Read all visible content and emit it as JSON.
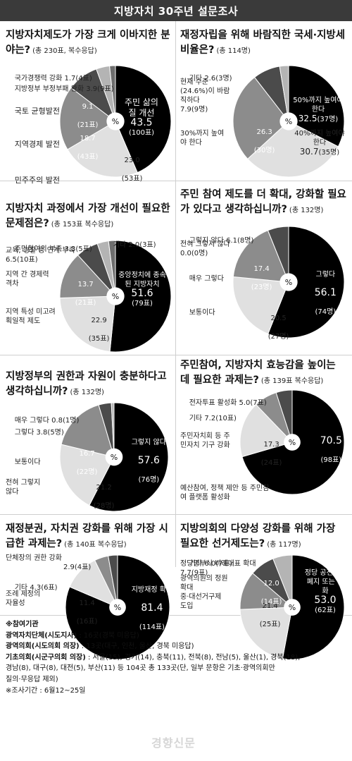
{
  "banner": {
    "title": "지방자치 30주년 설문조사"
  },
  "chart_data": [
    {
      "type": "pie",
      "question": "지방자치제도가 가장 크게 이바지한 분야는?",
      "note": "(총 230표, 복수응답)",
      "center": "%",
      "slices": [
        {
          "label": "주민 삶의 질 개선",
          "value": 43.5,
          "count": "(100표)",
          "color": "#000000"
        },
        {
          "label": "민주주의 발전",
          "value": 23.0,
          "count": "(53표)",
          "color": "#e0e0e0"
        },
        {
          "label": "지역경제 발전",
          "value": 18.7,
          "count": "(43표)",
          "color": "#8c8c8c"
        },
        {
          "label": "국토 균형발전",
          "value": 9.1,
          "count": "(21표)",
          "color": "#4b4b4b"
        },
        {
          "label": "지방정부 부정부패 완화",
          "value": 3.9,
          "count": "(9표)",
          "color": "#b4b4b4"
        },
        {
          "label": "국가경쟁력 강화",
          "value": 1.7,
          "count": "(4표)",
          "color": "#6e6e6e"
        }
      ]
    },
    {
      "type": "pie",
      "question": "재정자립을 위해 바람직한 국세·지방세 비율은?",
      "note": "(총 114명)",
      "center": "%",
      "slices": [
        {
          "label": "50%까지 높여야 한다",
          "value": 32.5,
          "count": "(37명)",
          "color": "#000000"
        },
        {
          "label": "40%까지 높여야 한다",
          "value": 30.7,
          "count": "(35명)",
          "color": "#e0e0e0"
        },
        {
          "label": "30%까지 높여야 한다",
          "value": 26.3,
          "count": "(30명)",
          "color": "#8c8c8c"
        },
        {
          "label": "현재 수준(24.6%)이 바람직하다",
          "value": 7.9,
          "count": "(9명)",
          "color": "#4b4b4b"
        },
        {
          "label": "기타",
          "value": 2.6,
          "count": "(3명)",
          "color": "#b4b4b4"
        }
      ]
    },
    {
      "type": "pie",
      "question": "지방자치 과정에서 가장 개선이 필요한 문제점은?",
      "note": "(총 153표 복수응답)",
      "center": "%",
      "slices": [
        {
          "label": "중앙정치에 종속된 지방자치",
          "value": 51.6,
          "count": "(79표)",
          "color": "#000000"
        },
        {
          "label": "지역 특성 미고려 획일적 제도",
          "value": 22.9,
          "count": "(35표)",
          "color": "#e0e0e0"
        },
        {
          "label": "지역 간 경제력 격차",
          "value": 13.7,
          "count": "(21표)",
          "color": "#8c8c8c"
        },
        {
          "label": "교육, 경찰 등 연계 부족",
          "value": 6.5,
          "count": "(10표)",
          "color": "#4b4b4b"
        },
        {
          "label": "주민참여의 부족",
          "value": 3.3,
          "count": "(5표)",
          "color": "#b4b4b4"
        },
        {
          "label": "기타",
          "value": 2.0,
          "count": "(3표)",
          "color": "#6e6e6e"
        }
      ]
    },
    {
      "type": "pie",
      "question": "주민 참여 제도를 더 확대, 강화할 필요가 있다고 생각하십니까?",
      "note": "(총 132명)",
      "center": "%",
      "slices": [
        {
          "label": "그렇다",
          "value": 56.1,
          "count": "(74명)",
          "color": "#000000"
        },
        {
          "label": "보통이다",
          "value": 20.5,
          "count": "(27명)",
          "color": "#e0e0e0"
        },
        {
          "label": "매우 그렇다",
          "value": 17.4,
          "count": "(23명)",
          "color": "#8c8c8c"
        },
        {
          "label": "전혀 그렇지 않다",
          "value": 0.0,
          "count": "(0명)",
          "color": "#b4b4b4"
        },
        {
          "label": "그렇지 않다",
          "value": 6.1,
          "count": "(8명)",
          "color": "#4b4b4b"
        }
      ]
    },
    {
      "type": "pie",
      "question": "지방정부의 권한과 자원이 충분하다고 생각하십니까?",
      "note": "(총 132명)",
      "center": "%",
      "slices": [
        {
          "label": "그렇지 않다",
          "value": 57.6,
          "count": "(76명)",
          "color": "#000000"
        },
        {
          "label": "전혀 그렇지 않다",
          "value": 21.2,
          "count": "(28명)",
          "color": "#e0e0e0"
        },
        {
          "label": "보통이다",
          "value": 16.7,
          "count": "(22명)",
          "color": "#8c8c8c"
        },
        {
          "label": "그렇다",
          "value": 3.8,
          "count": "(5명)",
          "color": "#4b4b4b"
        },
        {
          "label": "매우 그렇다",
          "value": 0.8,
          "count": "(1명)",
          "color": "#b4b4b4"
        }
      ]
    },
    {
      "type": "pie",
      "question": "주민참여, 지방자치 효능감을 높이는 데 필요한 과제는?",
      "note": "(총 139표 복수응답)",
      "center": "%",
      "slices": [
        {
          "label": "예산참여, 정책 제안 등 주민참여 플랫폼 활성화",
          "value": 70.5,
          "count": "(98표)",
          "color": "#000000"
        },
        {
          "label": "주민자치회 등 주민자치 기구 강화",
          "value": 17.3,
          "count": "(24표)",
          "color": "#e0e0e0"
        },
        {
          "label": "기타",
          "value": 7.2,
          "count": "(10표)",
          "color": "#8c8c8c"
        },
        {
          "label": "전자투표 활성화",
          "value": 5.0,
          "count": "(7표)",
          "color": "#4b4b4b"
        }
      ]
    },
    {
      "type": "pie",
      "question": "재정분권, 자치권 강화를 위해 가장 시급한 과제는?",
      "note": "(총 140표 복수응답)",
      "center": "%",
      "slices": [
        {
          "label": "지방재정 확충",
          "value": 81.4,
          "count": "(114표)",
          "color": "#000000"
        },
        {
          "label": "조례 제정의 자율성",
          "value": 11.4,
          "count": "(16표)",
          "color": "#e0e0e0"
        },
        {
          "label": "기타",
          "value": 4.3,
          "count": "(6표)",
          "color": "#8c8c8c"
        },
        {
          "label": "단체장의 권한 강화",
          "value": 2.9,
          "count": "(4표)",
          "color": "#4b4b4b"
        }
      ]
    },
    {
      "type": "pie",
      "question": "지방의회의 다양성 강화를 위해 가장 필요한 선거제도는?",
      "note": "(총 117명)",
      "center": "%",
      "slices": [
        {
          "label": "정당 공천제의 폐지 또는 완화",
          "value": 53.0,
          "count": "(62표)",
          "color": "#000000"
        },
        {
          "label": "중·대선거구제 도입",
          "value": 21.4,
          "count": "(25표)",
          "color": "#e0e0e0"
        },
        {
          "label": "광역의원의 정원 확대",
          "value": 12.0,
          "count": "(14표)",
          "color": "#8c8c8c"
        },
        {
          "label": "정당명부식 비례대표 확대",
          "value": 7.7,
          "count": "(9표)",
          "color": "#4b4b4b"
        },
        {
          "label": "기타",
          "value": 6.0,
          "count": "(7표)",
          "color": "#b4b4b4"
        }
      ]
    }
  ],
  "footer": {
    "title": "※참여기관",
    "lines": [
      {
        "head": "광역자치단체(시도지사)",
        "body": " : 16곳(경북 미응답)"
      },
      {
        "head": "광역의회(시도의회 의장)",
        "body": " : 13곳(대구, 인천, 울산, 경북 미응답)"
      },
      {
        "head": "기초의회(시군구의회 의장)",
        "body": " : 서울(15), 경기(14), 충북(11), 전북(8), 전남(5), 울산(1), 경북(18),"
      },
      {
        "head": "",
        "body": "경남(8), 대구(8), 대전(5), 부산(11) 등 104곳 총 133곳(단, 일부 문항은 기초·광역의회만"
      },
      {
        "head": "",
        "body": "질의·무응답 제외)"
      },
      {
        "head": "",
        "body": "※조사기간 : 6월12~25일"
      }
    ]
  },
  "watermark": "경향신문"
}
